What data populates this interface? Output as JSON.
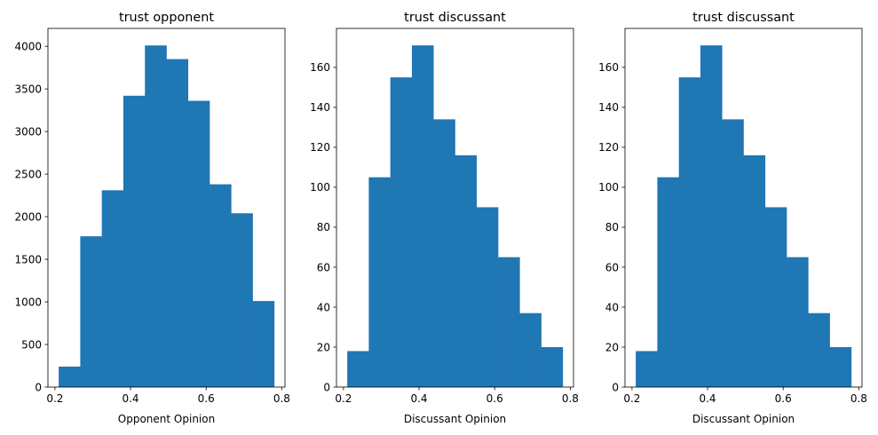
{
  "colors": {
    "bar": "#1f77b4",
    "axis": "#000000",
    "background": "#ffffff"
  },
  "chart_data": [
    {
      "type": "bar",
      "title": "trust opponent",
      "xlabel": "Opponent Opinion",
      "ylabel": "",
      "bin_edges": [
        0.21,
        0.267,
        0.324,
        0.381,
        0.438,
        0.495,
        0.552,
        0.609,
        0.666,
        0.723,
        0.78
      ],
      "values": [
        240,
        1770,
        2310,
        3420,
        4010,
        3850,
        3360,
        2380,
        2040,
        1010
      ],
      "xlim": [
        0.1815,
        0.8085
      ],
      "ylim": [
        0,
        4210
      ],
      "xticks": [
        0.2,
        0.4,
        0.6,
        0.8
      ],
      "xtick_labels": [
        "0.2",
        "0.4",
        "0.6",
        "0.8"
      ],
      "yticks": [
        0,
        500,
        1000,
        1500,
        2000,
        2500,
        3000,
        3500,
        4000
      ],
      "ytick_labels": [
        "0",
        "500",
        "1000",
        "1500",
        "2000",
        "2500",
        "3000",
        "3500",
        "4000"
      ],
      "grid": false,
      "legend": "none"
    },
    {
      "type": "bar",
      "title": "trust discussant",
      "xlabel": "Discussant Opinion",
      "ylabel": "",
      "bin_edges": [
        0.21,
        0.267,
        0.324,
        0.381,
        0.438,
        0.495,
        0.552,
        0.609,
        0.666,
        0.723,
        0.78
      ],
      "values": [
        18,
        105,
        155,
        171,
        134,
        116,
        90,
        65,
        37,
        20
      ],
      "xlim": [
        0.1815,
        0.8085
      ],
      "ylim": [
        0,
        179.5
      ],
      "xticks": [
        0.2,
        0.4,
        0.6,
        0.8
      ],
      "xtick_labels": [
        "0.2",
        "0.4",
        "0.6",
        "0.8"
      ],
      "yticks": [
        0,
        20,
        40,
        60,
        80,
        100,
        120,
        140,
        160
      ],
      "ytick_labels": [
        "0",
        "20",
        "40",
        "60",
        "80",
        "100",
        "120",
        "140",
        "160"
      ],
      "grid": false,
      "legend": "none"
    },
    {
      "type": "bar",
      "title": "trust discussant",
      "xlabel": "Discussant Opinion",
      "ylabel": "",
      "bin_edges": [
        0.21,
        0.267,
        0.324,
        0.381,
        0.438,
        0.495,
        0.552,
        0.609,
        0.666,
        0.723,
        0.78
      ],
      "values": [
        18,
        105,
        155,
        171,
        134,
        116,
        90,
        65,
        37,
        20
      ],
      "xlim": [
        0.1815,
        0.8085
      ],
      "ylim": [
        0,
        179.5
      ],
      "xticks": [
        0.2,
        0.4,
        0.6,
        0.8
      ],
      "xtick_labels": [
        "0.2",
        "0.4",
        "0.6",
        "0.8"
      ],
      "yticks": [
        0,
        20,
        40,
        60,
        80,
        100,
        120,
        140,
        160
      ],
      "ytick_labels": [
        "0",
        "20",
        "40",
        "60",
        "80",
        "100",
        "120",
        "140",
        "160"
      ],
      "grid": false,
      "legend": "none"
    }
  ]
}
